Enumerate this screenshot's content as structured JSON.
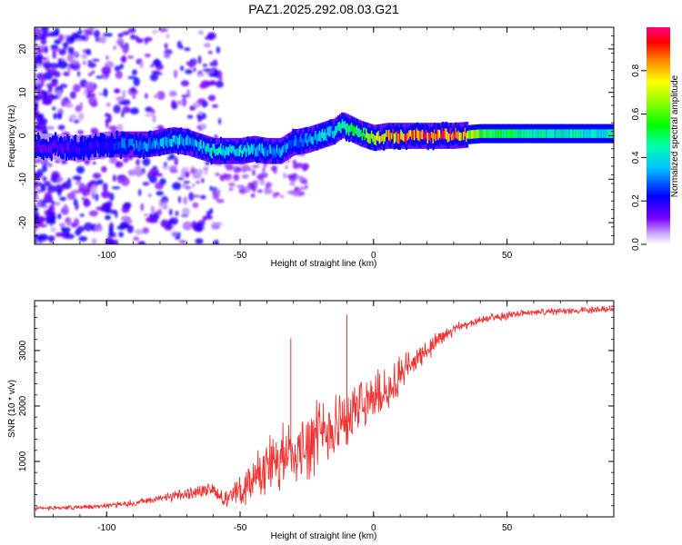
{
  "figure": {
    "title": "PAZ1.2025.292.08.03.G21"
  },
  "chart_data": [
    {
      "type": "heatmap",
      "title": "PAZ1.2025.292.08.03.G21",
      "xlabel": "Height of straight line (km)",
      "ylabel": "Frequency (Hz)",
      "xlim": [
        -127,
        90
      ],
      "ylim": [
        -25,
        25
      ],
      "xticks": [
        -100,
        -50,
        0,
        50
      ],
      "yticks": [
        -20,
        -10,
        0,
        10,
        20
      ],
      "ridge": {
        "x": [
          -120,
          -110,
          -100,
          -95,
          -90,
          -85,
          -80,
          -75,
          -70,
          -65,
          -60,
          -55,
          -50,
          -45,
          -40,
          -35,
          -30,
          -25,
          -20,
          -15,
          -12,
          -10,
          -5,
          0,
          5,
          10,
          20,
          30,
          40,
          60,
          90
        ],
        "freq": [
          -2.5,
          -3,
          -2,
          -2,
          -2,
          -2,
          -1.5,
          -1,
          -1.5,
          -2.5,
          -3.5,
          -3.5,
          -3.5,
          -3,
          -3.5,
          -3.5,
          -1.5,
          -1,
          0,
          1,
          2.5,
          2,
          0.5,
          -0.5,
          0,
          0,
          0,
          0,
          0.5,
          0.5,
          0.5
        ],
        "amplitude": [
          0.15,
          0.2,
          0.2,
          0.3,
          0.3,
          0.35,
          0.35,
          0.4,
          0.35,
          0.4,
          0.45,
          0.45,
          0.45,
          0.4,
          0.35,
          0.35,
          0.3,
          0.35,
          0.4,
          0.4,
          0.5,
          0.5,
          0.55,
          0.7,
          0.85,
          0.9,
          1.0,
          1.0,
          0.6,
          0.45,
          0.45
        ]
      },
      "colorbar": {
        "label": "Normalized spectral amplitude",
        "range": [
          0,
          1
        ],
        "ticks": [
          "0.0",
          "0.2",
          "0.4",
          "0.6",
          "0.8"
        ]
      }
    },
    {
      "type": "line",
      "xlabel": "Height of straight line (km)",
      "ylabel": "SNR (10 * v/v)",
      "xlim": [
        -127,
        90
      ],
      "ylim": [
        0,
        3900
      ],
      "xticks": [
        -100,
        -50,
        0,
        50
      ],
      "yticks": [
        1000,
        2000,
        3000
      ],
      "series": [
        {
          "name": "SNR",
          "color": "#ee3333",
          "x": [
            -127,
            -120,
            -110,
            -100,
            -95,
            -90,
            -85,
            -80,
            -75,
            -70,
            -65,
            -60,
            -55,
            -50,
            -45,
            -40,
            -35,
            -30,
            -25,
            -20,
            -15,
            -10,
            -5,
            0,
            5,
            10,
            15,
            20,
            25,
            30,
            35,
            40,
            45,
            50,
            55,
            60,
            70,
            80,
            90
          ],
          "y": [
            150,
            160,
            170,
            200,
            230,
            250,
            290,
            330,
            370,
            410,
            480,
            490,
            300,
            480,
            700,
            900,
            1050,
            1200,
            1350,
            1500,
            1650,
            1800,
            2000,
            2150,
            2300,
            2550,
            2800,
            3000,
            3200,
            3380,
            3470,
            3540,
            3600,
            3630,
            3670,
            3690,
            3710,
            3730,
            3760
          ],
          "spread": [
            60,
            60,
            60,
            70,
            80,
            80,
            90,
            110,
            130,
            160,
            180,
            200,
            220,
            400,
            650,
            800,
            900,
            950,
            950,
            900,
            900,
            850,
            800,
            700,
            600,
            500,
            400,
            300,
            200,
            150,
            120,
            110,
            100,
            100,
            90,
            90,
            90,
            90,
            90
          ]
        }
      ],
      "annotations": [
        {
          "x": -31,
          "y": 3220,
          "label": ""
        },
        {
          "x": -10,
          "y": 3650,
          "label": ""
        }
      ]
    }
  ]
}
